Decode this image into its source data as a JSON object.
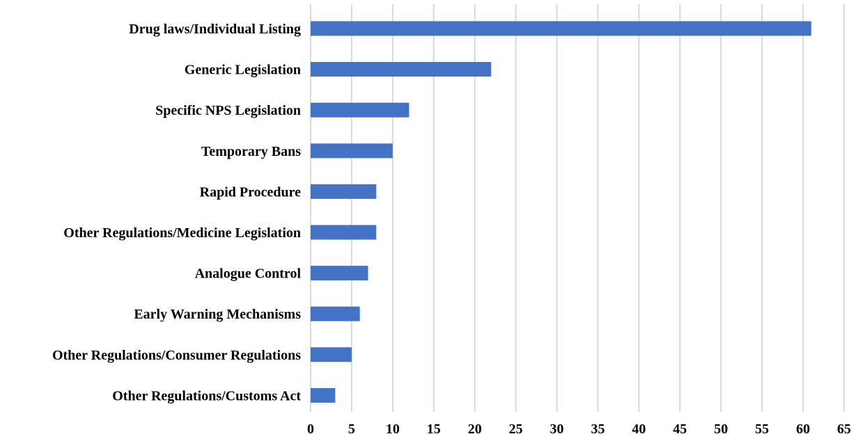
{
  "chart_data": {
    "type": "bar",
    "orientation": "horizontal",
    "title": "",
    "xlabel": "",
    "ylabel": "",
    "categories": [
      "Drug laws/Individual Listing",
      "Generic Legislation",
      "Specific NPS Legislation",
      "Temporary Bans",
      "Rapid Procedure",
      "Other Regulations/Medicine Legislation",
      "Analogue Control",
      "Early Warning Mechanisms",
      "Other Regulations/Consumer Regulations",
      "Other Regulations/Customs Act"
    ],
    "values": [
      61,
      22,
      12,
      10,
      8,
      8,
      7,
      6,
      5,
      3
    ],
    "xlim": [
      0,
      65
    ],
    "xticks": [
      "0",
      "5",
      "10",
      "15",
      "20",
      "25",
      "30",
      "35",
      "40",
      "45",
      "50",
      "55",
      "60",
      "65"
    ],
    "grid": "vertical",
    "legend": "none",
    "colors": {
      "bar": "#4472c4",
      "grid": "#d9d9d9",
      "text": "#000000"
    }
  }
}
